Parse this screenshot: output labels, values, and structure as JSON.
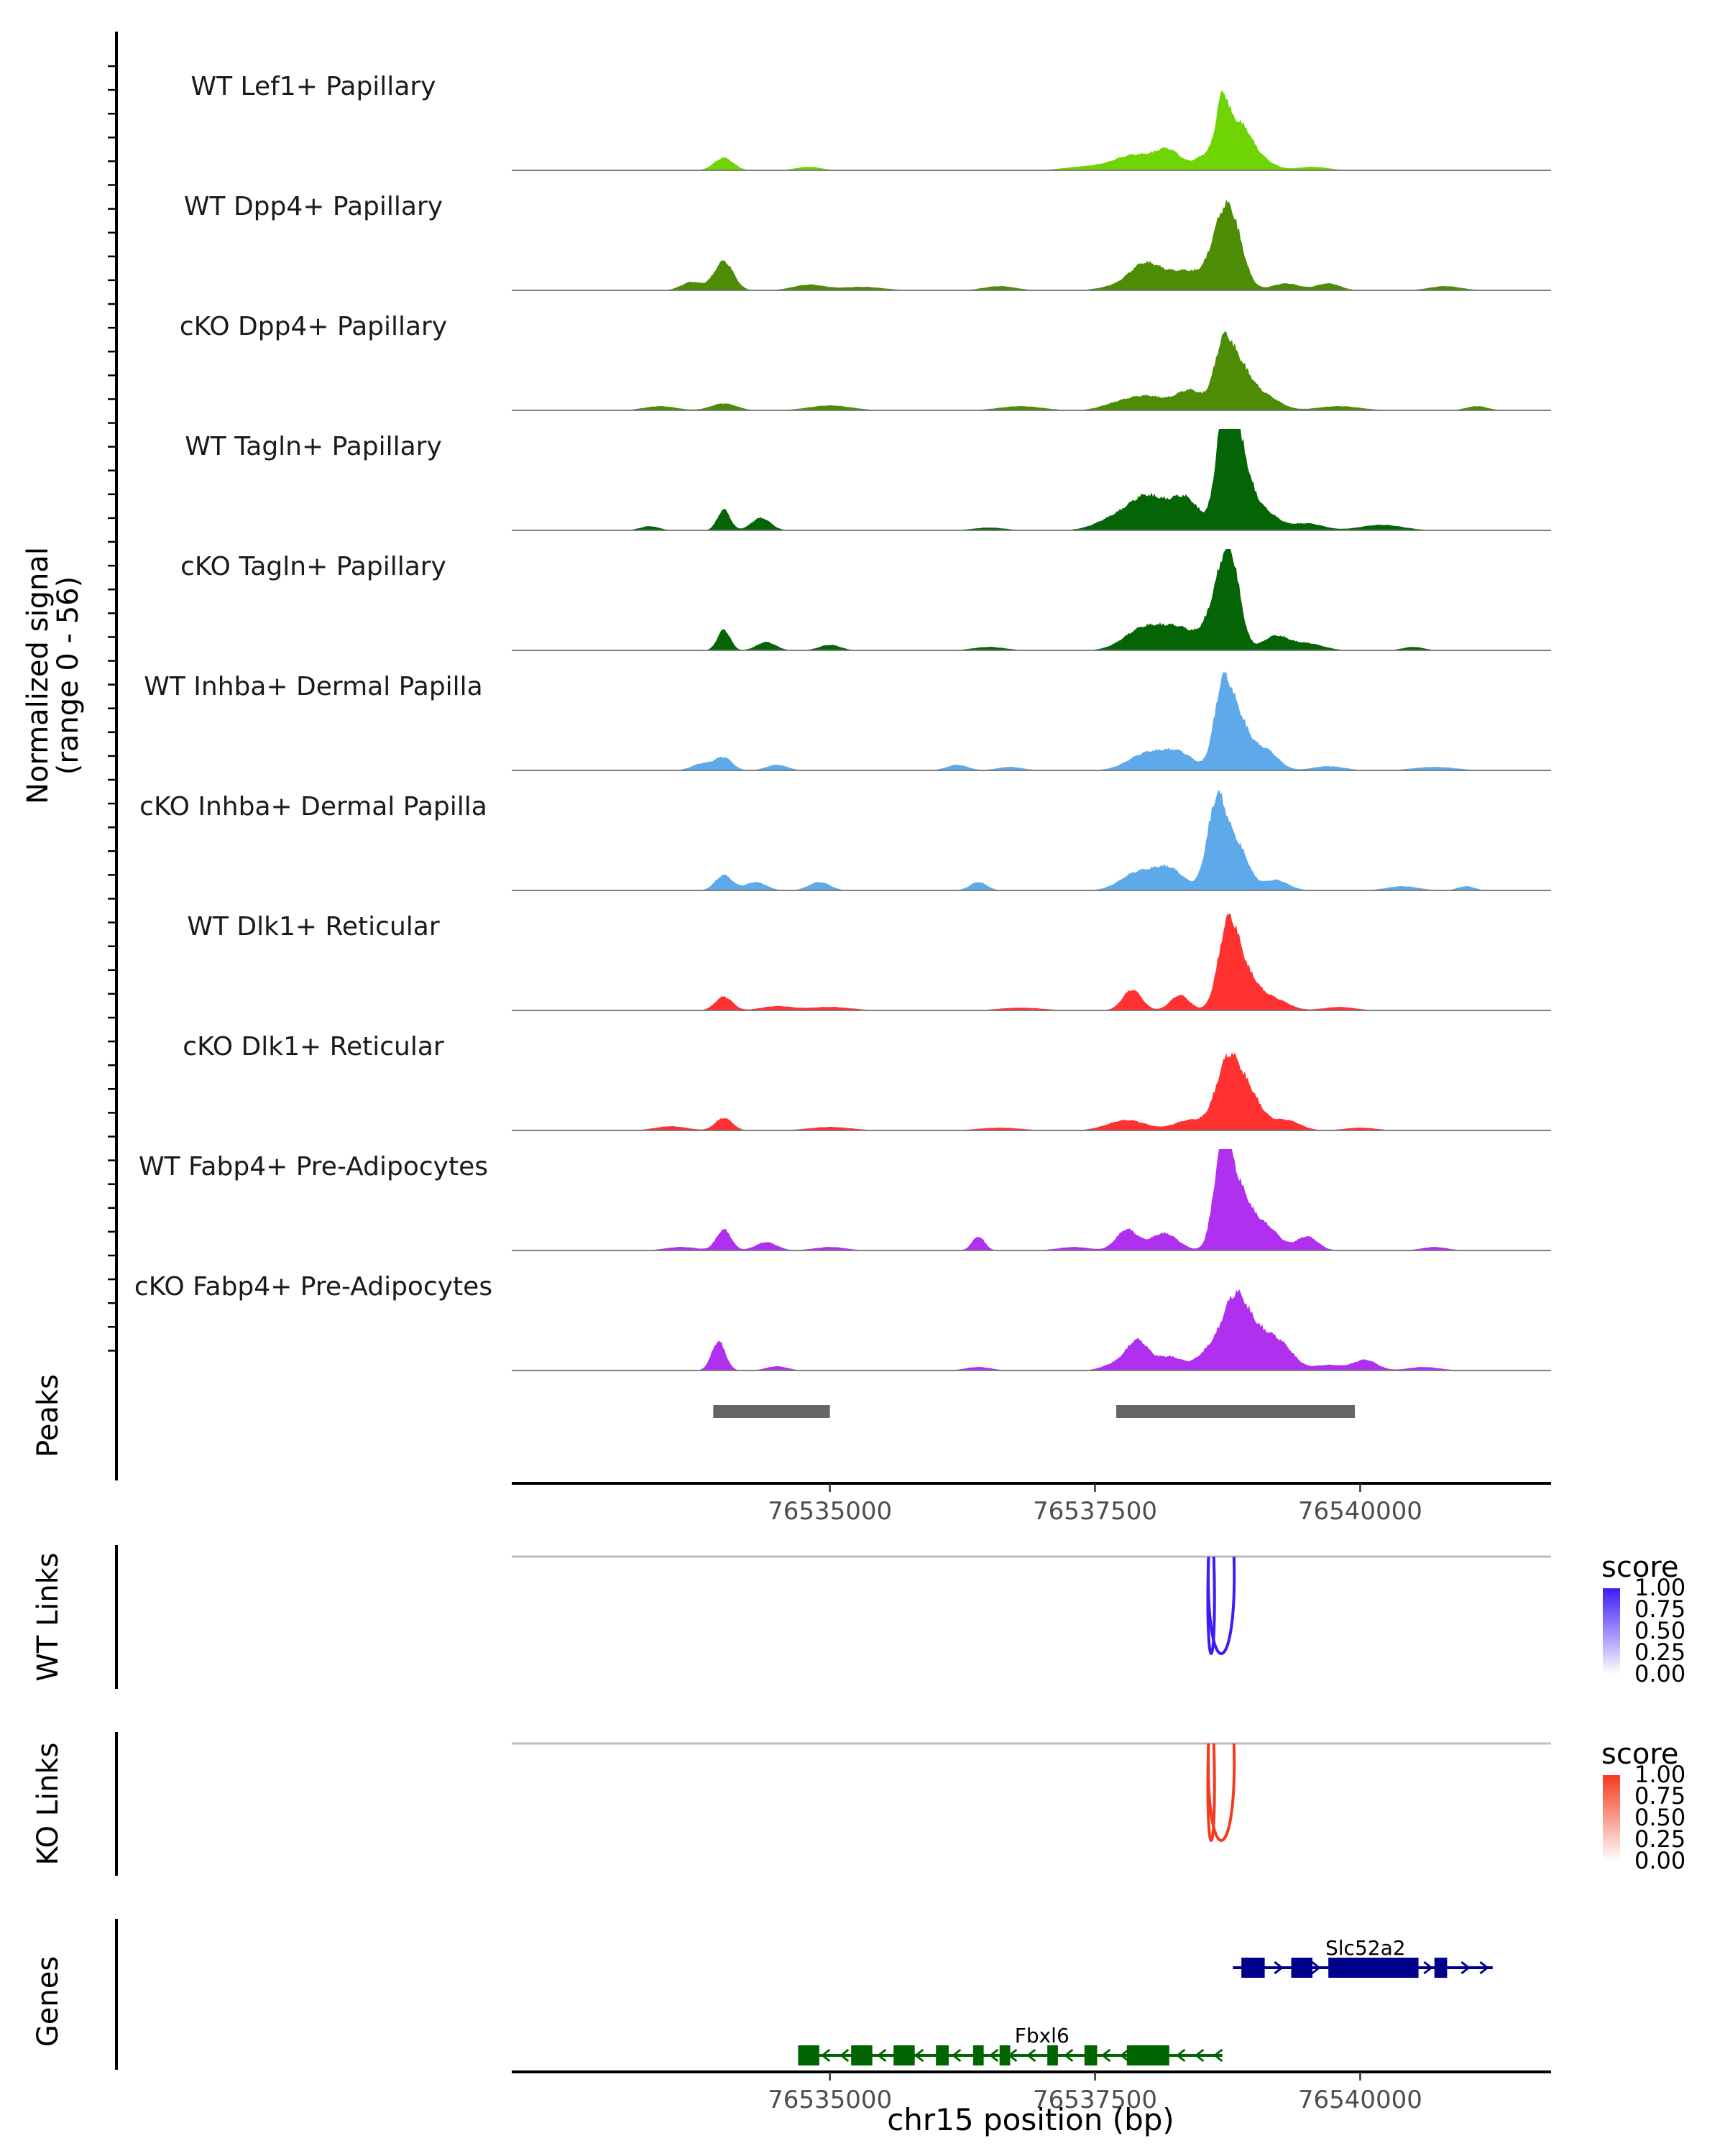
{
  "chart_data": {
    "type": "area",
    "title": "",
    "coverage": {
      "ylabel_line1": "Normalized signal",
      "ylabel_line2": "(range 0 - 56)",
      "ylim": [
        0,
        56
      ],
      "tracks": [
        {
          "label": "WT Lef1+ Papillary",
          "color": "#6FD403",
          "profile": "lef"
        },
        {
          "label": "WT Dpp4+ Papillary",
          "color": "#4D8C05",
          "profile": "dpp"
        },
        {
          "label": "cKO Dpp4+ Papillary",
          "color": "#4D8C05",
          "profile": "dppk"
        },
        {
          "label": "WT Tagln+ Papillary",
          "color": "#056405",
          "profile": "tag"
        },
        {
          "label": "cKO Tagln+ Papillary",
          "color": "#056405",
          "profile": "tagk"
        },
        {
          "label": "WT Inhba+ Dermal Papilla",
          "color": "#5DA9E9",
          "profile": "inh"
        },
        {
          "label": "cKO Inhba+ Dermal Papilla",
          "color": "#5DA9E9",
          "profile": "inhk"
        },
        {
          "label": "WT Dlk1+ Reticular",
          "color": "#FF3131",
          "profile": "dlk"
        },
        {
          "label": "cKO Dlk1+ Reticular",
          "color": "#FF3131",
          "profile": "dlkk"
        },
        {
          "label": "WT Fabp4+ Pre-Adipocytes",
          "color": "#B030EF",
          "profile": "fab"
        },
        {
          "label": "cKO Fabp4+ Pre-Adipocytes",
          "color": "#B030EF",
          "profile": "fabk"
        }
      ]
    },
    "region": {
      "start": 76532000,
      "end": 76541800
    },
    "peaks": {
      "label": "Peaks",
      "ranges": [
        [
          76533900,
          76535000
        ],
        [
          76537700,
          76539950
        ]
      ],
      "color": "#666666"
    },
    "x_ticks": [
      76535000,
      76537500,
      76540000
    ],
    "x_tick_labels": [
      "76535000",
      "76537500",
      "76540000"
    ],
    "xlabel": "chr15 position (bp)",
    "links": [
      {
        "label": "WT Links",
        "legend_title": "score",
        "legend_ticks": [
          "1.00",
          "0.75",
          "0.50",
          "0.25",
          "0.00"
        ],
        "color_low": "#FFFFFF",
        "color_high": "#3B1CF5",
        "arcs": [
          {
            "start": 76538570,
            "end": 76538620,
            "score": 0.9
          },
          {
            "start": 76538570,
            "end": 76538810,
            "score": 0.9
          }
        ]
      },
      {
        "label": "KO Links",
        "legend_title": "score",
        "legend_ticks": [
          "1.00",
          "0.75",
          "0.50",
          "0.25",
          "0.00"
        ],
        "color_low": "#FFFFFF",
        "color_high": "#F43B1F",
        "arcs": [
          {
            "start": 76538570,
            "end": 76538620,
            "score": 0.9
          },
          {
            "start": 76538570,
            "end": 76538810,
            "score": 0.9
          }
        ]
      }
    ],
    "genes": {
      "label": "Genes",
      "items": [
        {
          "name": "Slc52a2",
          "strand": "+",
          "color": "#00008B",
          "start": 76538800,
          "end": 76541250,
          "exons": [
            [
              76538880,
              76539100
            ],
            [
              76539350,
              76539550
            ],
            [
              76539700,
              76540550
            ],
            [
              76540700,
              76540820
            ]
          ]
        },
        {
          "name": "Fbxl6",
          "strand": "-",
          "color": "#006400",
          "start": 76534700,
          "end": 76538700,
          "exons": [
            [
              76534700,
              76534900
            ],
            [
              76535200,
              76535400
            ],
            [
              76535600,
              76535800
            ],
            [
              76536000,
              76536120
            ],
            [
              76536350,
              76536450
            ],
            [
              76536600,
              76536700
            ],
            [
              76537050,
              76537150
            ],
            [
              76537400,
              76537520
            ],
            [
              76537800,
              76538200
            ]
          ]
        }
      ]
    }
  }
}
